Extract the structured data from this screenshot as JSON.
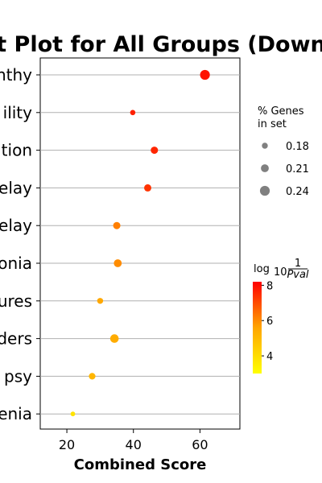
{
  "chart_data": {
    "type": "scatter",
    "title": "t Plot for All Groups (Down",
    "xlabel": "Combined Score",
    "xlim": [
      12,
      72
    ],
    "xticks": [
      20,
      40,
      60
    ],
    "grid": "horizontal",
    "categories": [
      "nthy",
      "ility",
      "ation",
      "elay",
      "elay",
      "onia",
      "ures",
      "rders",
      "psy",
      "enia"
    ],
    "points": [
      {
        "category": "nthy",
        "x": 61.5,
        "pct_genes": 0.24,
        "log10_inv_pval": 7.9
      },
      {
        "category": "ility",
        "x": 39.8,
        "pct_genes": 0.17,
        "log10_inv_pval": 7.7
      },
      {
        "category": "ation",
        "x": 46.3,
        "pct_genes": 0.2,
        "log10_inv_pval": 7.6
      },
      {
        "category": "elay",
        "x": 44.3,
        "pct_genes": 0.2,
        "log10_inv_pval": 7.4
      },
      {
        "category": "elay",
        "x": 35.0,
        "pct_genes": 0.2,
        "log10_inv_pval": 6.2
      },
      {
        "category": "onia",
        "x": 35.3,
        "pct_genes": 0.21,
        "log10_inv_pval": 6.0
      },
      {
        "category": "ures",
        "x": 30.0,
        "pct_genes": 0.18,
        "log10_inv_pval": 5.5
      },
      {
        "category": "rders",
        "x": 34.3,
        "pct_genes": 0.22,
        "log10_inv_pval": 5.4
      },
      {
        "category": "psy",
        "x": 27.6,
        "pct_genes": 0.19,
        "log10_inv_pval": 5.1
      },
      {
        "category": "enia",
        "x": 21.8,
        "pct_genes": 0.16,
        "log10_inv_pval": 3.8
      }
    ],
    "size_legend": {
      "title_line1": "% Genes",
      "title_line2": "in set",
      "entries": [
        {
          "label": "0.18",
          "value": 0.18
        },
        {
          "label": "0.21",
          "value": 0.21
        },
        {
          "label": "0.24",
          "value": 0.24
        }
      ]
    },
    "colorbar": {
      "title_prefix": "log",
      "title_sub": "10",
      "title_num": "1",
      "title_den": "Pval",
      "range": [
        3,
        8.2
      ],
      "ticks": [
        "8",
        "6",
        "4"
      ],
      "colors": [
        "#ffff00",
        "#ffa500",
        "#ff0000"
      ]
    },
    "point_edge_color": "#ff0000"
  }
}
